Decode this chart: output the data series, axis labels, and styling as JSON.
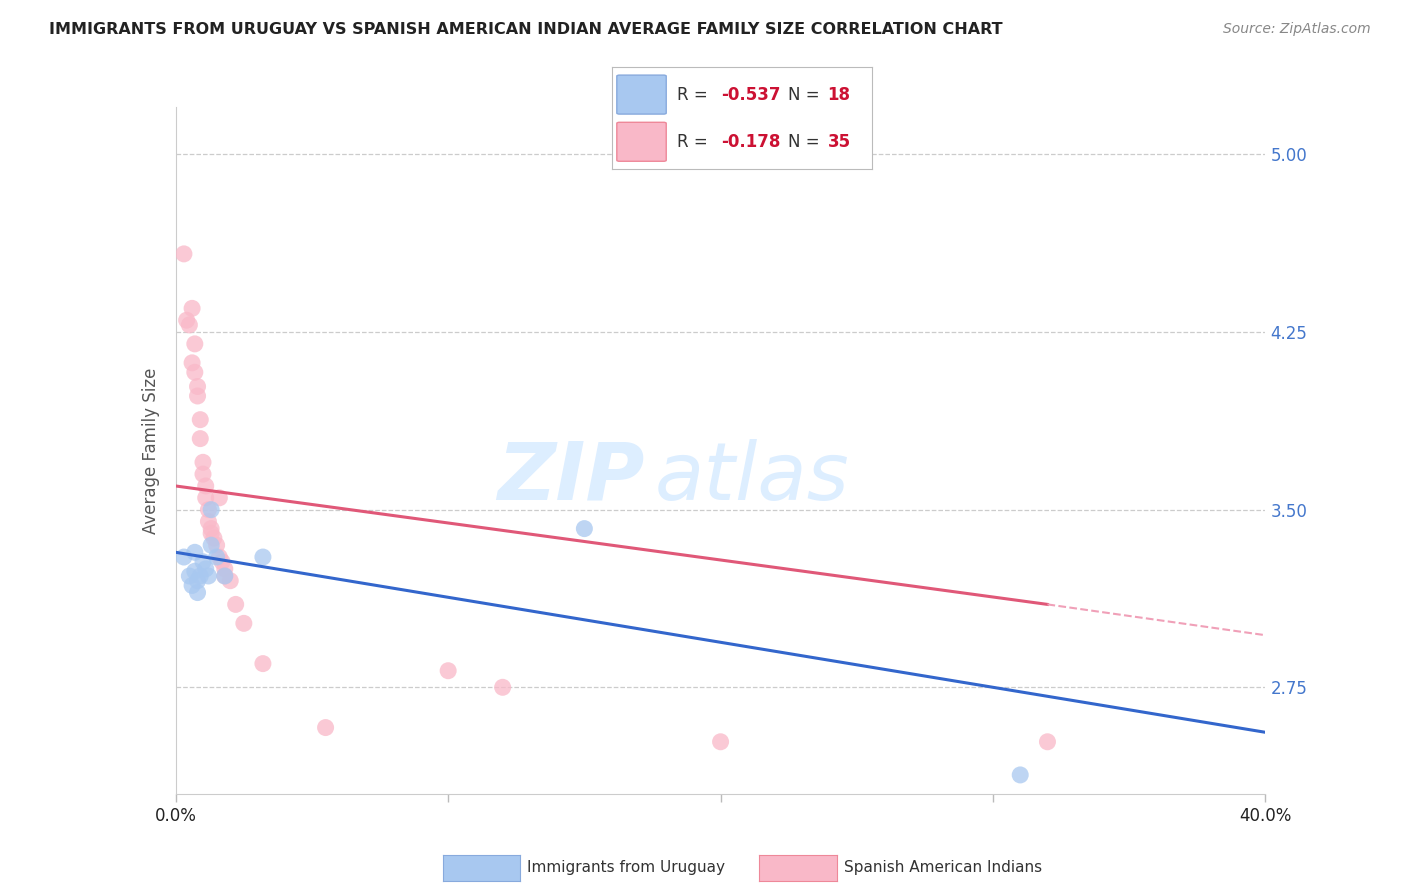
{
  "title": "IMMIGRANTS FROM URUGUAY VS SPANISH AMERICAN INDIAN AVERAGE FAMILY SIZE CORRELATION CHART",
  "source": "Source: ZipAtlas.com",
  "ylabel": "Average Family Size",
  "yticks": [
    2.75,
    3.5,
    4.25,
    5.0
  ],
  "xlim": [
    0.0,
    0.4
  ],
  "ylim": [
    2.3,
    5.2
  ],
  "uruguay_scatter_x": [
    0.003,
    0.005,
    0.006,
    0.007,
    0.007,
    0.008,
    0.008,
    0.009,
    0.01,
    0.011,
    0.012,
    0.013,
    0.013,
    0.015,
    0.018,
    0.032,
    0.15,
    0.31
  ],
  "uruguay_scatter_y": [
    3.3,
    3.22,
    3.18,
    3.24,
    3.32,
    3.2,
    3.15,
    3.22,
    3.28,
    3.25,
    3.22,
    3.35,
    3.5,
    3.3,
    3.22,
    3.3,
    3.42,
    2.38
  ],
  "spanish_scatter_x": [
    0.003,
    0.004,
    0.005,
    0.006,
    0.006,
    0.007,
    0.007,
    0.008,
    0.008,
    0.009,
    0.009,
    0.01,
    0.01,
    0.011,
    0.011,
    0.012,
    0.012,
    0.013,
    0.013,
    0.014,
    0.015,
    0.016,
    0.016,
    0.017,
    0.018,
    0.018,
    0.02,
    0.022,
    0.025,
    0.032,
    0.055,
    0.1,
    0.12,
    0.2,
    0.32
  ],
  "spanish_scatter_y": [
    4.58,
    4.3,
    4.28,
    4.12,
    4.35,
    4.08,
    4.2,
    4.02,
    3.98,
    3.88,
    3.8,
    3.7,
    3.65,
    3.6,
    3.55,
    3.5,
    3.45,
    3.42,
    3.4,
    3.38,
    3.35,
    3.3,
    3.55,
    3.28,
    3.25,
    3.22,
    3.2,
    3.1,
    3.02,
    2.85,
    2.58,
    2.82,
    2.75,
    2.52,
    2.52
  ],
  "uruguay_color": "#a8c8f0",
  "spanish_color": "#f9b8c8",
  "uruguay_line_color": "#3366cc",
  "spanish_line_color": "#e05878",
  "spanish_line_dash_color": "#f0a0b8",
  "background_color": "#ffffff",
  "watermark_zip": "ZIP",
  "watermark_atlas": "atlas",
  "watermark_color": "#ddeeff",
  "legend_r1": "R = -0.537",
  "legend_n1": "N = 18",
  "legend_r2": "R = -0.178",
  "legend_n2": "N = 35",
  "legend_color1": "#a8c8f0",
  "legend_color2": "#f9b8c8",
  "uru_line_x0": 0.0,
  "uru_line_y0": 3.32,
  "uru_line_x1": 0.4,
  "uru_line_y1": 2.56,
  "spa_line_x0": 0.0,
  "spa_line_y0": 3.6,
  "spa_line_x1_solid": 0.32,
  "spa_line_y1_solid": 3.1,
  "spa_line_x1_dash": 0.4,
  "spa_line_y1_dash": 2.97
}
